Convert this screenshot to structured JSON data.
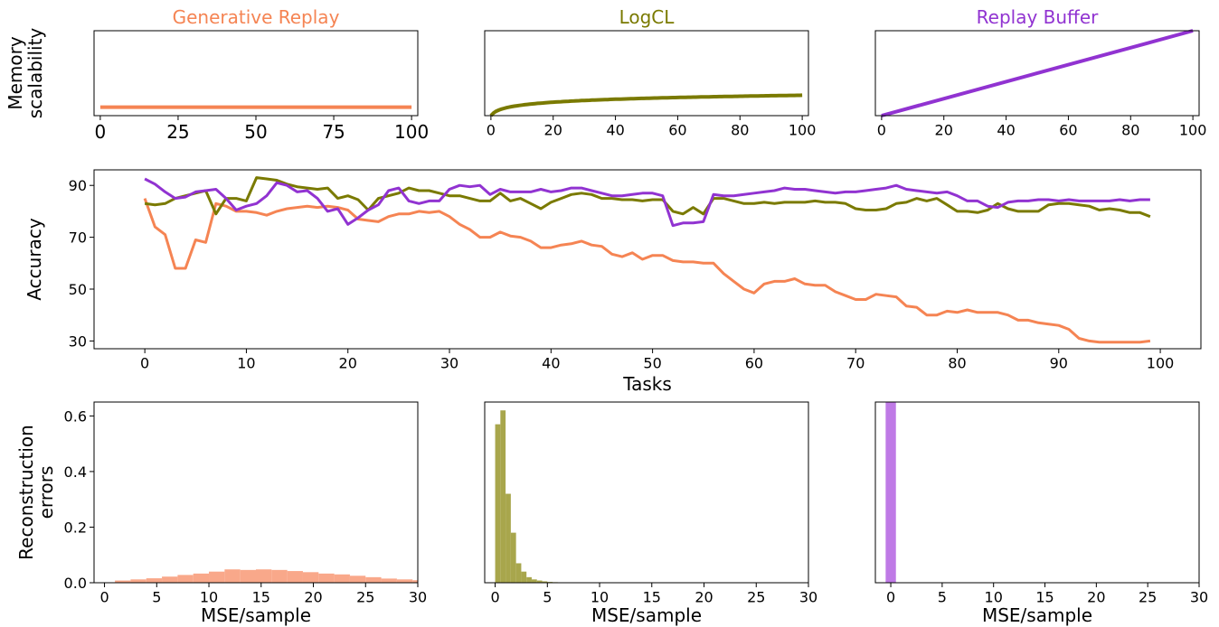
{
  "chart_data": [
    {
      "type": "line",
      "title": "Generative Replay",
      "ylabel": "Memory\nscalability",
      "xlim": [
        -2,
        102
      ],
      "xticks": [
        0,
        25,
        50,
        75,
        100
      ],
      "ylim": [
        0,
        1
      ],
      "series": [
        {
          "color": "#f58453",
          "x": [
            0,
            100
          ],
          "y": [
            0.1,
            0.1
          ]
        }
      ]
    },
    {
      "type": "line",
      "title": "LogCL",
      "ylabel": "",
      "xlim": [
        -2,
        102
      ],
      "xticks": [
        0,
        20,
        40,
        60,
        80,
        100
      ],
      "ylim": [
        0,
        1
      ],
      "series": [
        {
          "color": "#7a7a00",
          "curve": "log",
          "x": [
            0,
            100
          ],
          "y": [
            0,
            0.24
          ]
        }
      ]
    },
    {
      "type": "line",
      "title": "Replay Buffer",
      "ylabel": "",
      "xlim": [
        -2,
        102
      ],
      "xticks": [
        0,
        20,
        40,
        60,
        80,
        100
      ],
      "ylim": [
        0,
        1
      ],
      "series": [
        {
          "color": "#9133d1",
          "x": [
            0,
            100
          ],
          "y": [
            0,
            1
          ]
        }
      ]
    },
    {
      "type": "line",
      "title": "",
      "xlabel": "Tasks",
      "ylabel": "Accuracy",
      "xlim": [
        -5,
        104
      ],
      "ylim": [
        27,
        96
      ],
      "xticks": [
        0,
        10,
        20,
        30,
        40,
        50,
        60,
        70,
        80,
        90,
        100
      ],
      "yticks": [
        30,
        50,
        70,
        90
      ],
      "x": [
        0,
        1,
        2,
        3,
        4,
        5,
        6,
        7,
        8,
        9,
        10,
        11,
        12,
        13,
        14,
        15,
        16,
        17,
        18,
        19,
        20,
        21,
        22,
        23,
        24,
        25,
        26,
        27,
        28,
        29,
        30,
        31,
        32,
        33,
        34,
        35,
        36,
        37,
        38,
        39,
        40,
        41,
        42,
        43,
        44,
        45,
        46,
        47,
        48,
        49,
        50,
        51,
        52,
        53,
        54,
        55,
        56,
        57,
        58,
        59,
        60,
        61,
        62,
        63,
        64,
        65,
        66,
        67,
        68,
        69,
        70,
        71,
        72,
        73,
        74,
        75,
        76,
        77,
        78,
        79,
        80,
        81,
        82,
        83,
        84,
        85,
        86,
        87,
        88,
        89,
        90,
        91,
        92,
        93,
        94,
        95,
        96,
        97,
        98,
        99
      ],
      "series": [
        {
          "color": "#f58453",
          "values": [
            85,
            74,
            71,
            58,
            58,
            69,
            68,
            83,
            82,
            80,
            80,
            79.5,
            78.5,
            80,
            81,
            81.5,
            82,
            81.5,
            82,
            81.5,
            80.5,
            77,
            76.5,
            76,
            78,
            79,
            79,
            80,
            79.5,
            80,
            78,
            75,
            73,
            70,
            70,
            72,
            70.5,
            70,
            68.5,
            66,
            66,
            67,
            67.5,
            68.5,
            67,
            66.5,
            63.5,
            62.5,
            64,
            61.5,
            63,
            63,
            61,
            60.5,
            60.5,
            60,
            60,
            56,
            53,
            50,
            48.5,
            52,
            53,
            53,
            54,
            52,
            51.5,
            51.5,
            49,
            47.5,
            46,
            46,
            48,
            47.5,
            47,
            43.5,
            43,
            40,
            40,
            41.5,
            41,
            42,
            41,
            41,
            41,
            40,
            38,
            38,
            37,
            36.5,
            36,
            34.5,
            31,
            30,
            29.5,
            29.5,
            29.5,
            29.5,
            29.5,
            30
          ]
        },
        {
          "color": "#7a7a00",
          "values": [
            83,
            82.5,
            83,
            85,
            86,
            87,
            88,
            79,
            85,
            85,
            84,
            93,
            92.5,
            92,
            90.5,
            89.5,
            89,
            88.5,
            89,
            85,
            86,
            84.5,
            80.5,
            85,
            86,
            87,
            89,
            88,
            88,
            87,
            86,
            86,
            85,
            84,
            84,
            87,
            84,
            85,
            83,
            81,
            83.5,
            85,
            86.5,
            87,
            86.5,
            85,
            85,
            84.5,
            84.5,
            84,
            84.5,
            84.5,
            80,
            79,
            81.5,
            79,
            85,
            85,
            84,
            83,
            83,
            83.5,
            83,
            83.5,
            83.5,
            83.5,
            84,
            83.5,
            83.5,
            83,
            81,
            80.5,
            80.5,
            81,
            83,
            83.5,
            85,
            84,
            85,
            82.5,
            80,
            80,
            79.5,
            80.5,
            83,
            81,
            80,
            80,
            80,
            82.5,
            83,
            83,
            82.5,
            82,
            80.5,
            81,
            80.5,
            79.5,
            79.5,
            78
          ]
        },
        {
          "color": "#9133d1",
          "values": [
            92.5,
            90.5,
            87.5,
            85,
            85.5,
            87.5,
            88,
            88.5,
            85,
            80.5,
            82,
            83,
            86,
            91,
            90,
            87.5,
            88,
            85,
            80,
            81,
            75,
            77.5,
            80.5,
            82.5,
            88,
            89,
            84,
            83,
            84,
            84,
            88.5,
            90,
            89.5,
            90,
            86.5,
            88.5,
            87.5,
            87.5,
            87.5,
            88.5,
            87.5,
            88,
            89,
            89,
            88,
            87,
            86,
            86,
            86.5,
            87,
            87,
            86,
            74.5,
            75.5,
            75.5,
            76,
            86.5,
            86,
            86,
            86.5,
            87,
            87.5,
            88,
            89,
            88.5,
            88.5,
            88,
            87.5,
            87,
            87.5,
            87.5,
            88,
            88.5,
            89,
            90,
            88.5,
            88,
            87.5,
            87,
            87.5,
            86,
            84,
            84,
            82,
            81.5,
            83.5,
            84,
            84,
            84.5,
            84.5,
            84,
            84.5,
            84,
            84,
            84,
            84,
            84.5,
            84,
            84.5,
            84.5
          ]
        }
      ]
    },
    {
      "type": "bar",
      "title": "",
      "xlabel": "MSE/sample",
      "ylabel": "Reconstruction\nerrors",
      "xlim": [
        -1,
        30
      ],
      "ylim": [
        0,
        0.65
      ],
      "xticks": [
        0,
        5,
        10,
        15,
        20,
        25,
        30
      ],
      "yticks": [
        0.0,
        0.2,
        0.4,
        0.6
      ],
      "color": "#f9a88a",
      "bin_edges": [
        1,
        2.5,
        4,
        5.5,
        7,
        8.5,
        10,
        11.5,
        13,
        14.5,
        16,
        17.5,
        19,
        20.5,
        22,
        23.5,
        25,
        26.5,
        28,
        29.5,
        31
      ],
      "values": [
        0.008,
        0.012,
        0.016,
        0.022,
        0.028,
        0.033,
        0.04,
        0.048,
        0.046,
        0.048,
        0.046,
        0.042,
        0.038,
        0.033,
        0.03,
        0.025,
        0.02,
        0.015,
        0.012,
        0.009
      ]
    },
    {
      "type": "bar",
      "title": "",
      "xlabel": "MSE/sample",
      "ylabel": "",
      "xlim": [
        -1,
        30
      ],
      "ylim": [
        0,
        0.65
      ],
      "xticks": [
        0,
        5,
        10,
        15,
        20,
        25,
        30
      ],
      "color": "#a8a64c",
      "bin_edges": [
        0,
        0.5,
        1,
        1.5,
        2,
        2.5,
        3,
        3.5,
        4,
        4.5,
        5,
        5.5,
        6,
        6.5,
        7
      ],
      "values": [
        0.57,
        0.62,
        0.32,
        0.18,
        0.07,
        0.04,
        0.02,
        0.012,
        0.008,
        0.005,
        0.003,
        0.002,
        0.0015,
        0.001
      ]
    },
    {
      "type": "bar",
      "title": "",
      "xlabel": "MSE/sample",
      "ylabel": "",
      "xlim": [
        -1.5,
        30
      ],
      "ylim": [
        0,
        0.65
      ],
      "xticks": [
        0,
        5,
        10,
        15,
        20,
        25,
        30
      ],
      "color": "#bf7ae6",
      "bin_edges": [
        -0.5,
        0.5
      ],
      "values": [
        0.66
      ]
    }
  ]
}
